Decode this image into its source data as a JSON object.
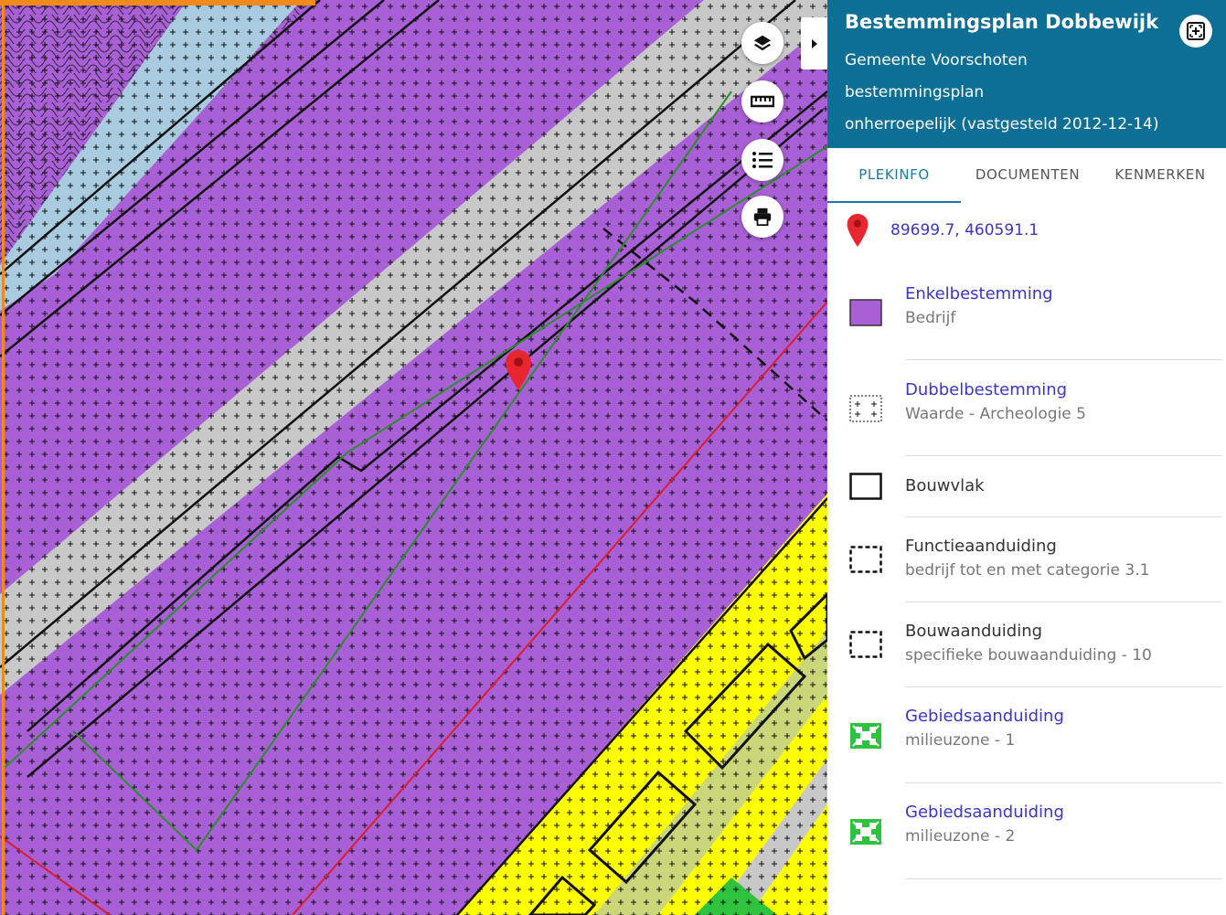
{
  "panel": {
    "title": "Bestemmingsplan Dobbewijk",
    "municipality": "Gemeente Voorschoten",
    "plan_type": "bestemmingsplan",
    "status": "onherroepelijk (vastgesteld 2012-12-14)",
    "tabs": [
      {
        "label": "PLEKINFO",
        "active": true
      },
      {
        "label": "DOCUMENTEN",
        "active": false
      },
      {
        "label": "KENMERKEN",
        "active": false
      }
    ],
    "coordinates": "89699.7, 460591.1",
    "legend": [
      {
        "title": "Enkelbestemming",
        "subtitle": "Bedrijf",
        "link": true,
        "symbol": "purple-fill-icon"
      },
      {
        "title": "Dubbelbestemming",
        "subtitle": "Waarde - Archeologie 5",
        "link": true,
        "symbol": "cross-pattern-icon"
      },
      {
        "title": "Bouwvlak",
        "subtitle": "",
        "link": false,
        "symbol": "solid-outline-icon"
      },
      {
        "title": "Functieaanduiding",
        "subtitle": "bedrijf tot en met categorie 3.1",
        "link": false,
        "symbol": "dashed-outline-icon"
      },
      {
        "title": "Bouwaanduiding",
        "subtitle": "specifieke bouwaanduiding - 10",
        "link": false,
        "symbol": "dashed-outline-icon"
      },
      {
        "title": "Gebiedsaanduiding",
        "subtitle": "milieuzone - 1",
        "link": true,
        "symbol": "green-zone-icon"
      },
      {
        "title": "Gebiedsaanduiding",
        "subtitle": "milieuzone - 2",
        "link": true,
        "symbol": "green-zone-icon"
      }
    ]
  },
  "map_tools": [
    "layers-icon",
    "measure-icon",
    "legend-list-icon",
    "print-icon"
  ],
  "colors": {
    "header": "#0d6f95",
    "link": "#3b35c8",
    "bedrijf": "#a95fd6",
    "verkeer": "#c8c8c8",
    "water": "#a9cbe0",
    "gemengd": "#ffff00",
    "groen": "#c9d77a",
    "frame": "#f08a1c"
  }
}
